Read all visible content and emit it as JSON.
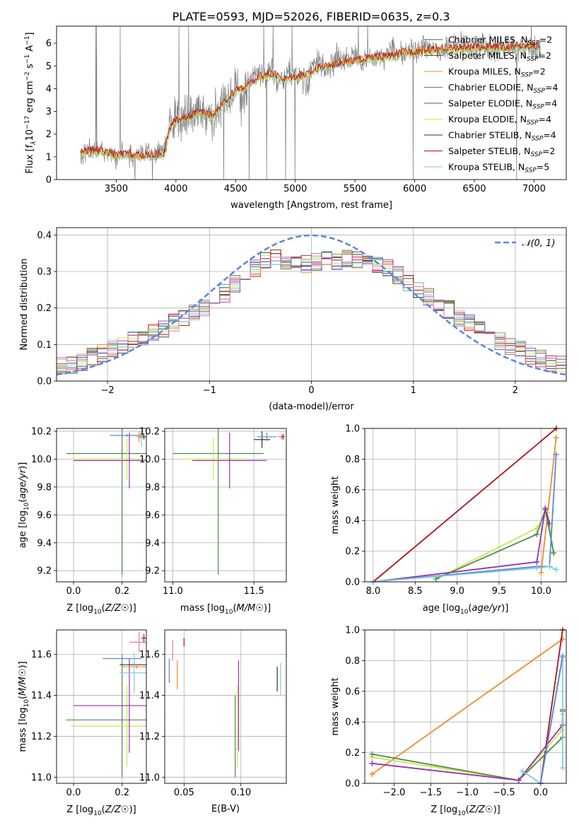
{
  "figure": {
    "title": "PLATE=0593, MJD=52026, FIBERID=0635, z=0.3"
  },
  "colors": {
    "spectrum_data": "#808080",
    "chabrier_miles": "#5a5a5a",
    "salpeter_miles": "#555555",
    "kroupa_miles": "#ef8c2a",
    "chabrier_elodie": "#4e8a4e",
    "salpeter_elodie": "#9b2fae",
    "kroupa_elodie": "#c8e84a",
    "chabrier_stelib": "#333333",
    "salpeter_stelib": "#b01515",
    "kroupa_stelib": "#7ecfdc",
    "normal_curve": "#5b87d6"
  },
  "chart_data": [
    {
      "id": "spectrum",
      "type": "line",
      "title": "PLATE=0593, MJD=52026, FIBERID=0635, z=0.3",
      "xlabel": "wavelength [Angstrom, rest frame]",
      "ylabel_parts": [
        "Flux [f",
        "λ",
        "10",
        "−17",
        " erg cm",
        "−2",
        " s",
        "−1",
        " A",
        "−1",
        "]"
      ],
      "xlim": [
        3000,
        7270
      ],
      "ylim": [
        0,
        6.75
      ],
      "xticks": [
        3500,
        4000,
        4500,
        5000,
        5500,
        6000,
        6500,
        7000
      ],
      "yticks": [
        0,
        1,
        2,
        3,
        4,
        5,
        6
      ],
      "grid": false,
      "legend_position": "upper-right",
      "legend": [
        {
          "name": "Chabrier MILES, N",
          "sub": "SSP",
          "suffix": "=2",
          "color": "#5a5a5a"
        },
        {
          "name": "Salpeter MILES, N",
          "sub": "SSP",
          "suffix": "=2",
          "color": "#555555"
        },
        {
          "name": "Kroupa MILES, N",
          "sub": "SSP",
          "suffix": "=2",
          "color": "#ef8c2a"
        },
        {
          "name": "Chabrier ELODIE, N",
          "sub": "SSP",
          "suffix": "=4",
          "color": "#4e8a4e"
        },
        {
          "name": "Salpeter ELODIE, N",
          "sub": "SSP",
          "suffix": "=4",
          "color": "#9b2fae"
        },
        {
          "name": "Kroupa ELODIE, N",
          "sub": "SSP",
          "suffix": "=4",
          "color": "#c8e84a"
        },
        {
          "name": "Chabrier STELIB, N",
          "sub": "SSP",
          "suffix": "=4",
          "color": "#333333"
        },
        {
          "name": "Salpeter STELIB, N",
          "sub": "SSP",
          "suffix": "=2",
          "color": "#b01515"
        },
        {
          "name": "Kroupa STELIB, N",
          "sub": "SSP",
          "suffix": "=5",
          "color": "#7ecfdc"
        }
      ],
      "data_series": {
        "name": "observed spectrum",
        "x": [
          3200,
          3250,
          3300,
          3350,
          3400,
          3450,
          3500,
          3550,
          3600,
          3650,
          3700,
          3750,
          3800,
          3850,
          3900,
          3950,
          4000,
          4050,
          4100,
          4150,
          4200,
          4250,
          4300,
          4350,
          4400,
          4450,
          4500,
          4550,
          4600,
          4650,
          4700,
          4750,
          4800,
          4850,
          4900,
          4950,
          5000,
          5050,
          5100,
          5150,
          5200,
          5250,
          5300,
          5350,
          5400,
          5450,
          5500,
          5550,
          5600,
          5650,
          5700,
          5750,
          5800,
          5850,
          5900,
          5950,
          6000,
          6050,
          6100,
          6150,
          6200,
          6250,
          6300,
          6350,
          6400,
          6450,
          6500,
          6550,
          6600,
          6650,
          6700,
          6750,
          6800,
          6850,
          6900,
          6950,
          7000,
          7050
        ],
        "y": [
          1.15,
          1.25,
          1.3,
          1.2,
          1.35,
          1.2,
          0.9,
          1.3,
          1.0,
          1.2,
          1.1,
          1.3,
          1.0,
          1.25,
          1.2,
          2.4,
          2.7,
          2.5,
          2.9,
          2.8,
          3.2,
          2.6,
          2.8,
          3.1,
          3.6,
          3.4,
          4.3,
          3.5,
          4.2,
          4.7,
          4.6,
          4.5,
          4.9,
          4.3,
          4.4,
          4.8,
          4.6,
          4.5,
          4.2,
          5.0,
          5.3,
          4.8,
          5.1,
          5.4,
          5.2,
          5.3,
          5.6,
          5.1,
          5.4,
          5.3,
          5.5,
          5.3,
          5.7,
          5.5,
          5.5,
          5.8,
          5.6,
          5.7,
          5.9,
          5.8,
          5.6,
          5.9,
          5.7,
          5.8,
          5.9,
          5.8,
          5.8,
          5.9,
          5.9,
          5.7,
          5.8,
          5.9,
          5.8,
          5.8,
          5.8,
          5.9,
          5.7,
          5.8
        ]
      },
      "model_series": {
        "name": "model spectra",
        "x": [
          3200,
          3300,
          3400,
          3500,
          3600,
          3700,
          3800,
          3900,
          3950,
          4000,
          4100,
          4200,
          4300,
          4400,
          4500,
          4600,
          4700,
          4800,
          4900,
          5000,
          5100,
          5200,
          5300,
          5400,
          5500,
          5600,
          5700,
          5800,
          5900,
          6000,
          6200,
          6400,
          6600,
          6800,
          7000,
          7050
        ],
        "y": [
          1.2,
          1.25,
          1.2,
          1.05,
          1.1,
          1.0,
          1.05,
          1.1,
          2.3,
          2.6,
          2.7,
          2.95,
          2.75,
          3.3,
          3.9,
          4.1,
          4.5,
          4.6,
          4.4,
          4.5,
          4.6,
          4.9,
          5.0,
          5.15,
          5.2,
          5.3,
          5.35,
          5.4,
          5.55,
          5.6,
          5.7,
          5.75,
          5.8,
          5.8,
          5.85,
          5.8
        ]
      }
    },
    {
      "id": "residuals",
      "type": "line",
      "xlabel": "(data-model)/error",
      "ylabel": "Normed distribution",
      "xlim": [
        -2.5,
        2.5
      ],
      "ylim": [
        0,
        0.42
      ],
      "xticks": [
        -2,
        -1,
        0,
        1,
        2
      ],
      "yticks": [
        0.0,
        0.1,
        0.2,
        0.3,
        0.4
      ],
      "grid": true,
      "legend_position": "upper-right",
      "legend_label": "𝒩(0, 1)",
      "bin_edges": [
        -2.5,
        -2.4,
        -2.3,
        -2.2,
        -2.1,
        -2.0,
        -1.9,
        -1.8,
        -1.7,
        -1.6,
        -1.5,
        -1.4,
        -1.3,
        -1.2,
        -1.1,
        -1.0,
        -0.9,
        -0.8,
        -0.7,
        -0.6,
        -0.5,
        -0.4,
        -0.3,
        -0.2,
        -0.1,
        0.0,
        0.1,
        0.2,
        0.3,
        0.4,
        0.5,
        0.6,
        0.7,
        0.8,
        0.9,
        1.0,
        1.1,
        1.2,
        1.3,
        1.4,
        1.5,
        1.6,
        1.7,
        1.8,
        1.9,
        2.0,
        2.1,
        2.2,
        2.3,
        2.4,
        2.5
      ],
      "histogram_mean": [
        0.04,
        0.045,
        0.05,
        0.065,
        0.075,
        0.09,
        0.1,
        0.11,
        0.12,
        0.135,
        0.145,
        0.16,
        0.17,
        0.19,
        0.2,
        0.215,
        0.24,
        0.265,
        0.29,
        0.31,
        0.33,
        0.335,
        0.33,
        0.325,
        0.32,
        0.325,
        0.33,
        0.33,
        0.335,
        0.33,
        0.325,
        0.32,
        0.31,
        0.29,
        0.27,
        0.25,
        0.23,
        0.21,
        0.195,
        0.175,
        0.16,
        0.14,
        0.125,
        0.11,
        0.095,
        0.085,
        0.07,
        0.06,
        0.05,
        0.045
      ],
      "normal_curve": {
        "mu": 0,
        "sigma": 1
      }
    },
    {
      "id": "age-vs-Z",
      "type": "scatter",
      "xlabel": "Z [log10(Z/Z☉)]",
      "ylabel": "age  [log10(age/yr)]",
      "xlim": [
        -0.07,
        0.3
      ],
      "ylim": [
        9.12,
        10.22
      ],
      "xticks": [
        0.0,
        0.2
      ],
      "yticks": [
        9.2,
        9.4,
        9.6,
        9.8,
        10.0,
        10.2
      ],
      "grid": true,
      "points": [
        {
          "x": 0.2,
          "xerr": 0.23,
          "y": 10.04,
          "yerr": 0.87,
          "color": "#4e8a4e"
        },
        {
          "x": 0.22,
          "xerr": 0.23,
          "y": 10.0,
          "yerr": 0.15,
          "color": "#c8e84a"
        },
        {
          "x": 0.23,
          "xerr": 0.23,
          "y": 9.99,
          "yerr": 0.2,
          "color": "#9b2fae"
        },
        {
          "x": 0.22,
          "xerr": 0.07,
          "y": 10.17,
          "yerr": 0.01,
          "color": "#5b87d6"
        },
        {
          "x": 0.29,
          "xerr": 0.02,
          "y": 10.16,
          "yerr": 0.02,
          "color": "#b01515"
        },
        {
          "x": 0.28,
          "xerr": 0.01,
          "y": 10.15,
          "yerr": 0.06,
          "color": "#7ecfdc"
        },
        {
          "x": 0.27,
          "xerr": 0.01,
          "y": 10.16,
          "yerr": 0.04,
          "color": "#ef8c2a"
        }
      ]
    },
    {
      "id": "age-vs-mass",
      "type": "scatter",
      "xlabel": "mass [log10(M/M☉)]",
      "ylabel": "",
      "xlim": [
        10.95,
        11.7
      ],
      "ylim": [
        9.12,
        10.22
      ],
      "xticks": [
        11.0,
        11.5
      ],
      "yticks": [
        9.2,
        9.4,
        9.6,
        9.8,
        10.0,
        10.2
      ],
      "grid": true,
      "points": [
        {
          "x": 11.28,
          "xerr": 0.28,
          "y": 10.04,
          "yerr": 0.87,
          "color": "#4e8a4e"
        },
        {
          "x": 11.25,
          "xerr": 0.2,
          "y": 10.0,
          "yerr": 0.15,
          "color": "#c8e84a"
        },
        {
          "x": 11.35,
          "xerr": 0.23,
          "y": 9.99,
          "yerr": 0.2,
          "color": "#9b2fae"
        },
        {
          "x": 11.55,
          "xerr": 0.05,
          "y": 10.14,
          "yerr": 0.06,
          "color": "#333333"
        },
        {
          "x": 11.58,
          "xerr": 0.06,
          "y": 10.16,
          "yerr": 0.03,
          "color": "#5b87d6"
        },
        {
          "x": 11.67,
          "xerr": 0.02,
          "y": 10.16,
          "yerr": 0.02,
          "color": "#e87aa0"
        },
        {
          "x": 11.68,
          "xerr": 0.01,
          "y": 10.16,
          "yerr": 0.02,
          "color": "#b01515"
        }
      ]
    },
    {
      "id": "massweight-vs-age",
      "type": "line",
      "xlabel": "age  [log10(age/yr)]",
      "ylabel": "mass weight",
      "xlim": [
        7.9,
        10.3
      ],
      "ylim": [
        0,
        1.0
      ],
      "xticks": [
        8.0,
        8.5,
        9.0,
        9.5,
        10.0
      ],
      "yticks": [
        0.0,
        0.2,
        0.4,
        0.6,
        0.8,
        1.0
      ],
      "grid": true,
      "series": [
        {
          "color": "#b01515",
          "x": [
            8.0,
            10.18
          ],
          "y": [
            0.0,
            1.0
          ]
        },
        {
          "color": "#ef8c2a",
          "x": [
            10.0,
            10.18
          ],
          "y": [
            0.06,
            0.94
          ]
        },
        {
          "color": "#c8e84a",
          "x": [
            8.75,
            9.95,
            10.08,
            10.15
          ],
          "y": [
            0.02,
            0.35,
            0.45,
            0.18
          ]
        },
        {
          "color": "#4e8a4e",
          "x": [
            8.75,
            9.95,
            10.05,
            10.15
          ],
          "y": [
            0.02,
            0.31,
            0.47,
            0.19
          ]
        },
        {
          "color": "#9b2fae",
          "x": [
            8.0,
            9.95,
            10.05,
            10.1
          ],
          "y": [
            0.0,
            0.13,
            0.48,
            0.38
          ]
        },
        {
          "color": "#5b87d6",
          "x": [
            8.0,
            9.95,
            10.1,
            10.18
          ],
          "y": [
            0.0,
            0.1,
            0.1,
            0.83
          ]
        },
        {
          "color": "#7ecfdc",
          "x": [
            8.0,
            9.95,
            10.1,
            10.18
          ],
          "y": [
            0.0,
            0.09,
            0.1,
            0.08
          ]
        }
      ]
    },
    {
      "id": "mass-vs-Z",
      "type": "scatter",
      "xlabel": "Z [log10(Z/Z☉)]",
      "ylabel": "mass [log10(M/M☉)]",
      "xlim": [
        -0.07,
        0.3
      ],
      "ylim": [
        10.97,
        11.72
      ],
      "xticks": [
        0.0,
        0.2
      ],
      "yticks": [
        11.0,
        11.2,
        11.4,
        11.6
      ],
      "grid": true,
      "points": [
        {
          "x": 0.2,
          "xerr": 0.23,
          "y": 11.28,
          "yerr": 0.28,
          "color": "#4e8a4e"
        },
        {
          "x": 0.22,
          "xerr": 0.23,
          "y": 11.25,
          "yerr": 0.2,
          "color": "#c8e84a"
        },
        {
          "x": 0.23,
          "xerr": 0.23,
          "y": 11.35,
          "yerr": 0.23,
          "color": "#9b2fae"
        },
        {
          "x": 0.2,
          "xerr": 0.08,
          "y": 11.58,
          "yerr": 0.02,
          "color": "#5b87d6"
        },
        {
          "x": 0.25,
          "xerr": 0.06,
          "y": 11.55,
          "yerr": 0.01,
          "color": "#333333"
        },
        {
          "x": 0.26,
          "xerr": 0.06,
          "y": 11.54,
          "yerr": 0.01,
          "color": "#ef8c2a"
        },
        {
          "x": 0.25,
          "xerr": 0.06,
          "y": 11.51,
          "yerr": 0.1,
          "color": "#7ecfdc"
        },
        {
          "x": 0.27,
          "xerr": 0.04,
          "y": 11.66,
          "yerr": 0.05,
          "color": "#e87aa0"
        },
        {
          "x": 0.29,
          "xerr": 0.01,
          "y": 11.68,
          "yerr": 0.02,
          "color": "#b01515"
        }
      ]
    },
    {
      "id": "mass-vs-EBV",
      "type": "scatter",
      "xlabel": "E(B-V)",
      "ylabel": "",
      "xlim": [
        0.033,
        0.14
      ],
      "ylim": [
        10.97,
        11.72
      ],
      "xticks": [
        0.05,
        0.1
      ],
      "yticks": [
        11.0,
        11.2,
        11.4,
        11.6
      ],
      "grid": true,
      "points": [
        {
          "x": 0.037,
          "y": 11.52,
          "yerr": 0.06,
          "color": "#5b87d6"
        },
        {
          "x": 0.04,
          "y": 11.62,
          "yerr": 0.05,
          "color": "#e87aa0"
        },
        {
          "x": 0.044,
          "y": 11.5,
          "yerr": 0.07,
          "color": "#ef8c2a"
        },
        {
          "x": 0.05,
          "y": 11.66,
          "yerr": 0.02,
          "color": "#b01515"
        },
        {
          "x": 0.095,
          "y": 11.2,
          "yerr": 0.2,
          "color": "#4e8a4e"
        },
        {
          "x": 0.097,
          "y": 11.25,
          "yerr": 0.2,
          "color": "#c8e84a"
        },
        {
          "x": 0.098,
          "y": 11.35,
          "yerr": 0.22,
          "color": "#9b2fae"
        },
        {
          "x": 0.132,
          "y": 11.48,
          "yerr": 0.06,
          "color": "#333333"
        },
        {
          "x": 0.135,
          "y": 11.48,
          "yerr": 0.08,
          "color": "#7ecfdc"
        }
      ]
    },
    {
      "id": "massweight-vs-Z",
      "type": "line",
      "xlabel": "Z [log10(Z/Z☉)]",
      "ylabel": "mass weight",
      "xlim": [
        -2.4,
        0.35
      ],
      "ylim": [
        0,
        1.0
      ],
      "xticks": [
        -2.0,
        -1.5,
        -1.0,
        -0.5,
        0.0
      ],
      "yticks": [
        0.0,
        0.2,
        0.4,
        0.6,
        0.8,
        1.0
      ],
      "grid": true,
      "series": [
        {
          "color": "#ef8c2a",
          "x": [
            -2.3,
            0.3
          ],
          "y": [
            0.06,
            0.94
          ]
        },
        {
          "color": "#b01515",
          "x": [
            0.0,
            0.3
          ],
          "y": [
            0.0,
            1.0
          ]
        },
        {
          "color": "#c8e84a",
          "x": [
            -2.3,
            -0.3,
            0.3,
            0.3
          ],
          "y": [
            0.17,
            0.02,
            0.35,
            0.45
          ]
        },
        {
          "color": "#4e8a4e",
          "x": [
            -2.3,
            -0.3,
            0.3,
            0.3
          ],
          "y": [
            0.19,
            0.02,
            0.3,
            0.47
          ]
        },
        {
          "color": "#9b2fae",
          "x": [
            -2.3,
            -0.3,
            0.3,
            0.3
          ],
          "y": [
            0.13,
            0.02,
            0.38,
            0.48
          ]
        },
        {
          "color": "#7ecfdc",
          "x": [
            -0.25,
            0.0,
            0.3,
            0.3
          ],
          "y": [
            0.08,
            0.0,
            0.82,
            0.1
          ]
        },
        {
          "color": "#5b87d6",
          "x": [
            0.0,
            0.3
          ],
          "y": [
            0.0,
            0.83
          ]
        }
      ]
    }
  ]
}
